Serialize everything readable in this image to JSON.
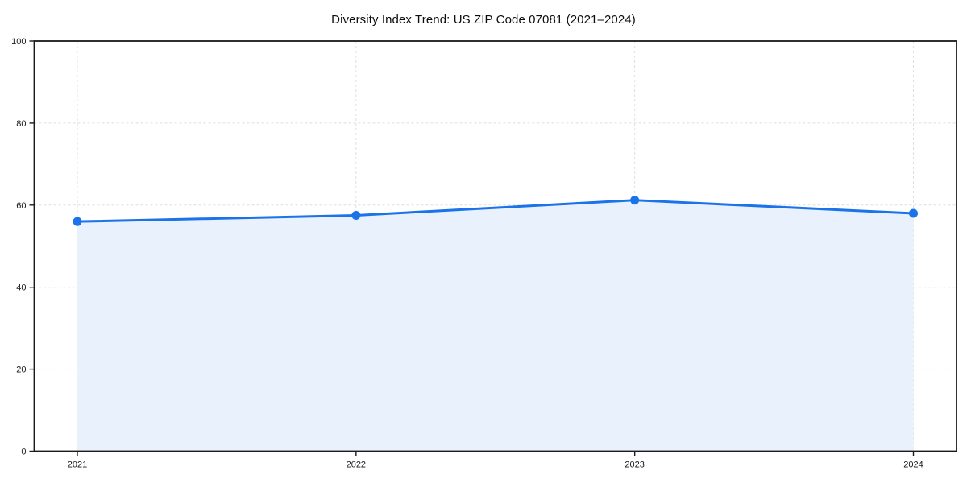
{
  "chart_data": {
    "type": "area",
    "title": "Diversity Index Trend: US ZIP Code 07081 (2021–2024)",
    "categories": [
      "2021",
      "2022",
      "2023",
      "2024"
    ],
    "values": [
      56,
      57.5,
      61.2,
      58
    ],
    "xlabel": "",
    "ylabel": "",
    "ylim": [
      0,
      100
    ],
    "yticks": [
      0,
      20,
      40,
      60,
      80,
      100
    ],
    "grid": true,
    "grid_style": "dashed",
    "legend": false,
    "colors": {
      "line": "#1a73e8",
      "marker": "#1a73e8",
      "area_fill": "#e9f1fc",
      "grid": "#dedede",
      "spine": "#1a1a1a",
      "tick_label": "#1a1a1a",
      "title": "#0d0d0d",
      "background": "#ffffff"
    }
  }
}
